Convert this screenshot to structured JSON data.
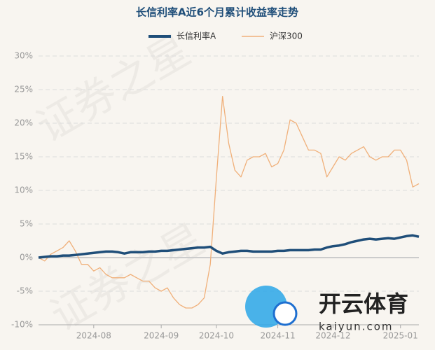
{
  "chart_data": {
    "type": "line",
    "title": "长信利率A近6个月累计收益率走势",
    "categories": [
      null,
      null,
      null,
      null,
      null,
      null,
      null,
      null,
      null,
      "2024-08",
      null,
      null,
      null,
      null,
      null,
      null,
      null,
      null,
      null,
      null,
      "2024-09",
      null,
      null,
      null,
      null,
      null,
      null,
      null,
      null,
      "2024-10",
      null,
      null,
      null,
      null,
      null,
      null,
      null,
      null,
      null,
      "2024-11",
      null,
      null,
      null,
      null,
      null,
      null,
      null,
      null,
      "2024-12",
      null,
      null,
      null,
      null,
      null,
      null,
      null,
      null,
      null,
      null,
      "2025-01",
      null,
      null,
      null
    ],
    "series": [
      {
        "name": "长信利率A",
        "color": "#1f4e79",
        "values": [
          0,
          0.1,
          0.2,
          0.2,
          0.3,
          0.3,
          0.4,
          0.5,
          0.6,
          0.7,
          0.8,
          0.9,
          0.9,
          0.8,
          0.6,
          0.8,
          0.8,
          0.8,
          0.9,
          0.9,
          1.0,
          1.0,
          1.1,
          1.2,
          1.3,
          1.4,
          1.5,
          1.5,
          1.6,
          1.0,
          0.6,
          0.8,
          0.9,
          1.0,
          1.0,
          0.9,
          0.9,
          0.9,
          0.9,
          1.0,
          1.0,
          1.1,
          1.1,
          1.1,
          1.1,
          1.2,
          1.2,
          1.5,
          1.7,
          1.8,
          2.0,
          2.3,
          2.5,
          2.7,
          2.8,
          2.7,
          2.8,
          2.9,
          2.8,
          3.0,
          3.2,
          3.3,
          3.1
        ]
      },
      {
        "name": "沪深300",
        "color": "#f0b07a",
        "values": [
          0,
          -0.5,
          0.5,
          1,
          1.5,
          2.5,
          1,
          -1,
          -1,
          -2,
          -1.5,
          -2.5,
          -3,
          -3,
          -3,
          -2.5,
          -3,
          -3.5,
          -3.5,
          -4.5,
          -5,
          -4.5,
          -6,
          -7,
          -7.5,
          -7.5,
          -7,
          -6,
          -1,
          12,
          24,
          17,
          13,
          12,
          14.5,
          15,
          15,
          15.5,
          13.5,
          14,
          16,
          20.5,
          20,
          18,
          16,
          16,
          15.5,
          12,
          13.5,
          15,
          14.5,
          15.5,
          16,
          16.5,
          15,
          14.5,
          15,
          15,
          16,
          16,
          14.5,
          10.5,
          11
        ]
      }
    ],
    "ylim": [
      -10,
      30
    ],
    "yticks": [
      {
        "value": -10,
        "label": "-10%"
      },
      {
        "value": -5,
        "label": "-5%"
      },
      {
        "value": 0,
        "label": "0%"
      },
      {
        "value": 5,
        "label": "5%"
      },
      {
        "value": 10,
        "label": "10%"
      },
      {
        "value": 15,
        "label": "15%"
      },
      {
        "value": 20,
        "label": "20%"
      },
      {
        "value": 25,
        "label": "25%"
      },
      {
        "value": 30,
        "label": "30%"
      }
    ],
    "grid": true
  },
  "watermark": "证券之星",
  "logo_text": "开云体育",
  "logo_url": "kaiyun.com"
}
